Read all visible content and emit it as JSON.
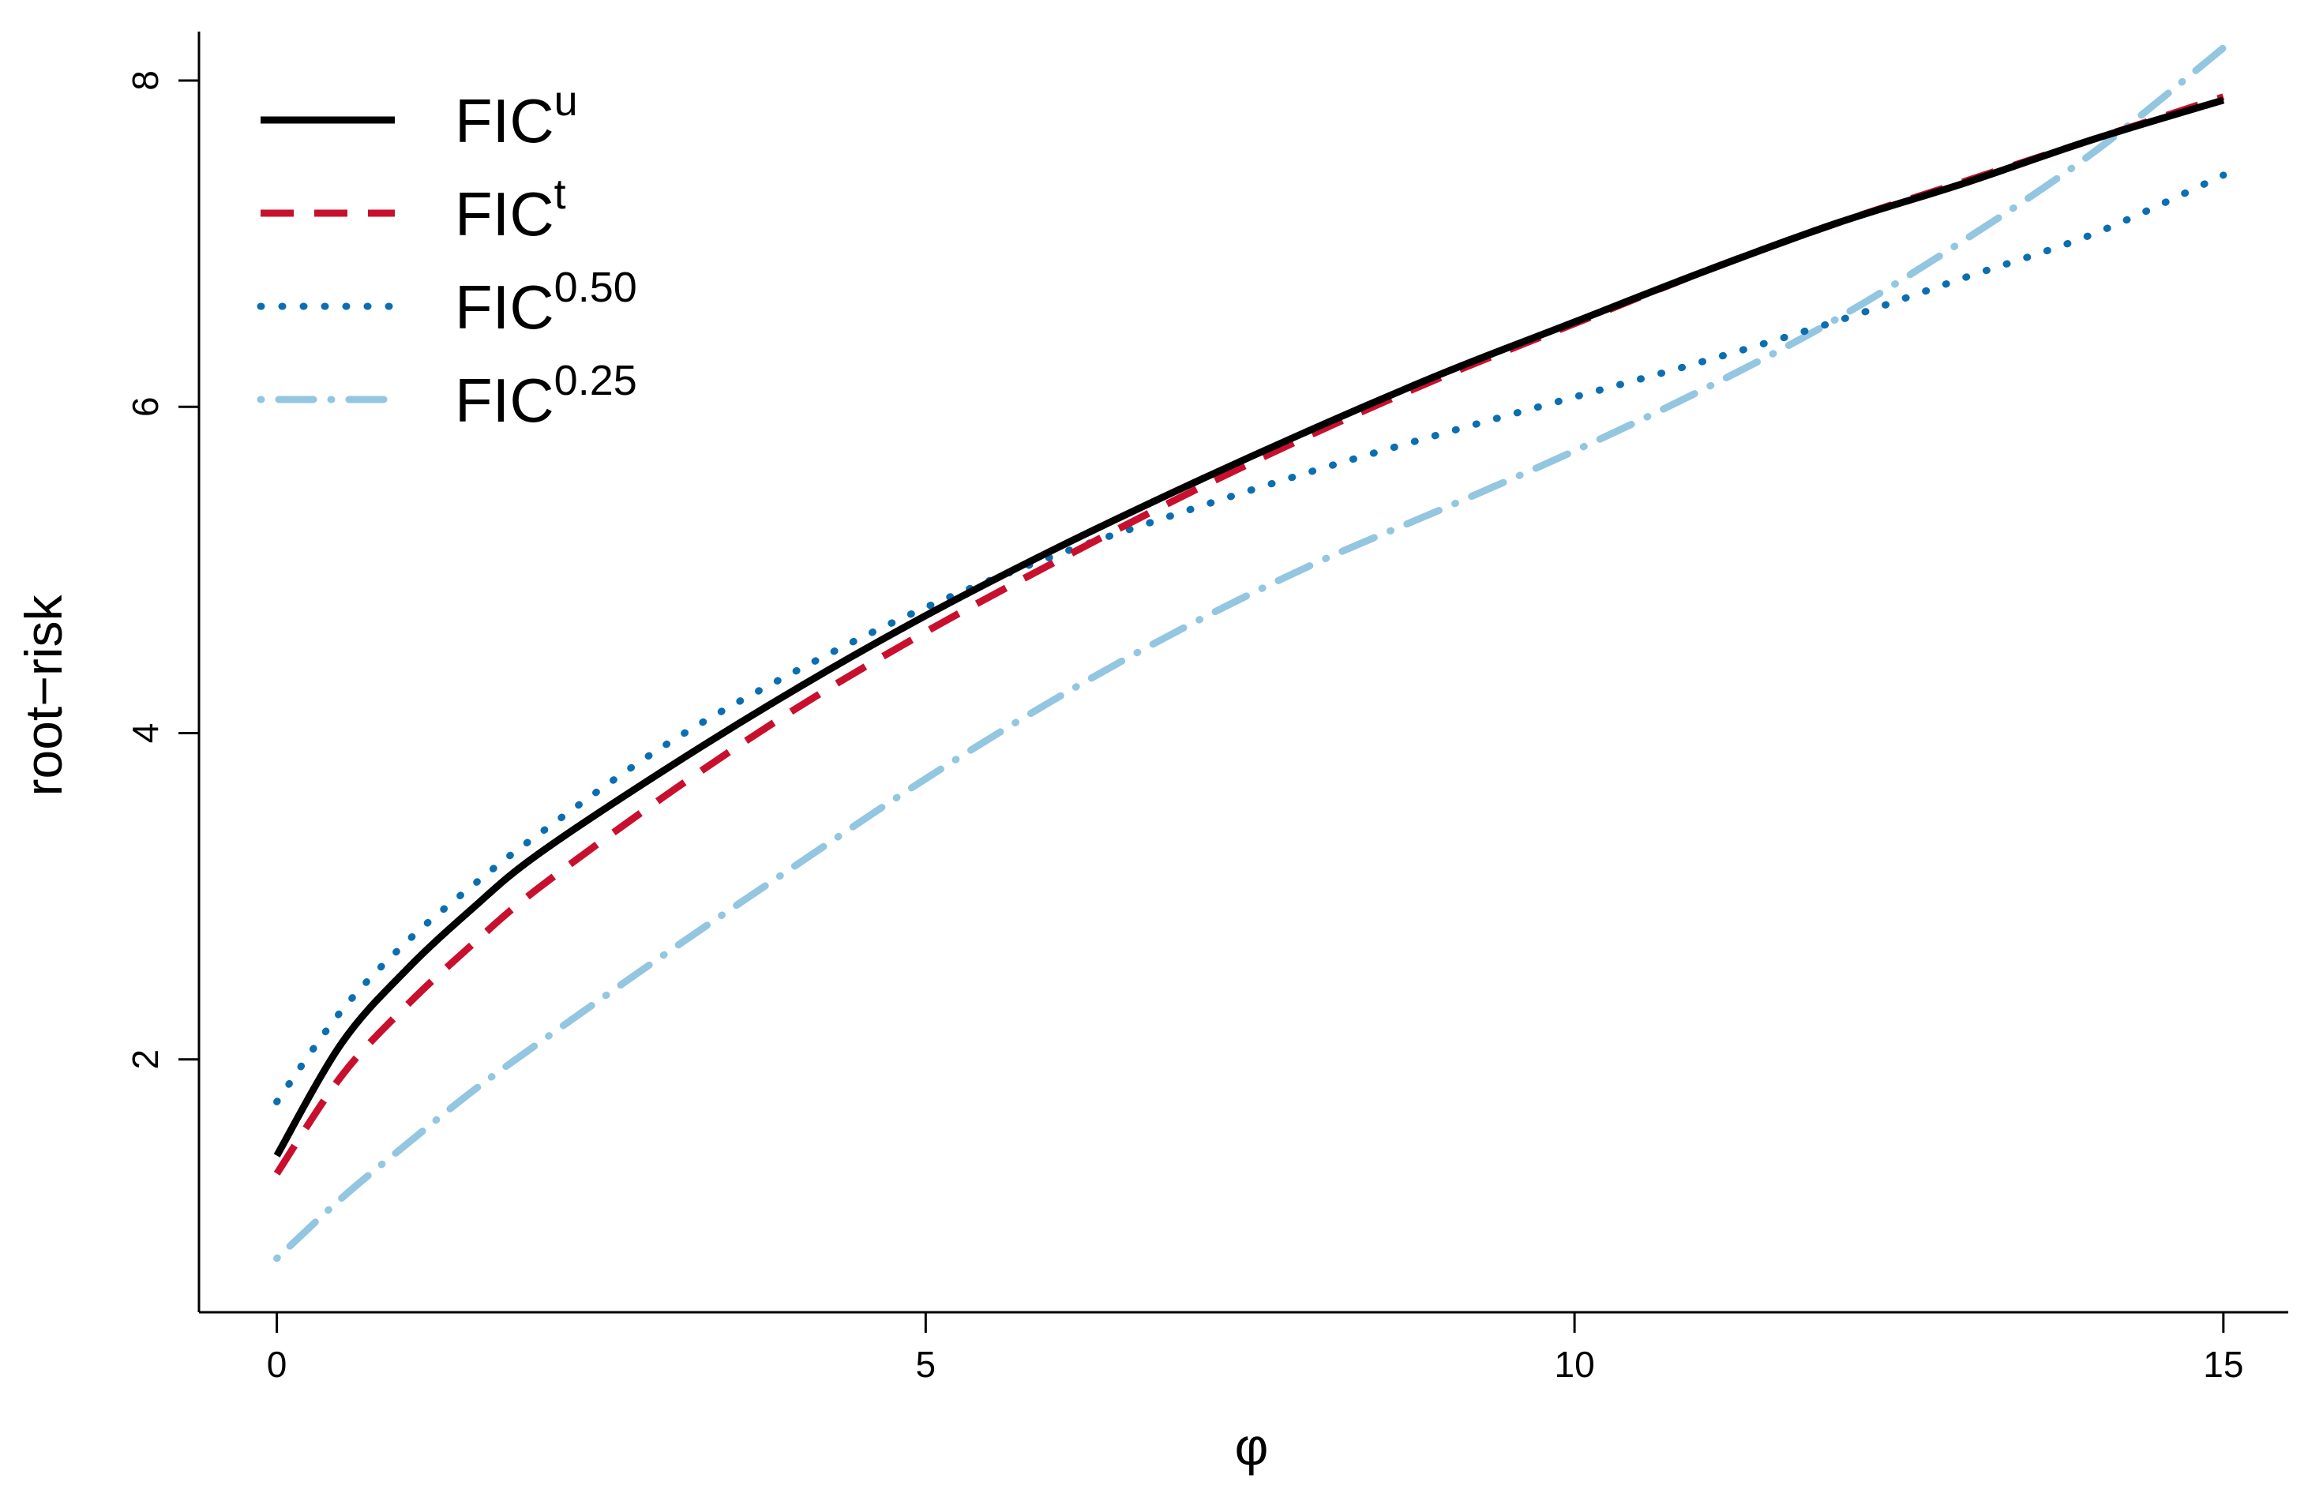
{
  "chart_data": {
    "type": "line",
    "title": "",
    "xlabel": "φ",
    "ylabel": "root−risk",
    "xlim": [
      -0.6,
      15.5
    ],
    "ylim": [
      0.45,
      8.3
    ],
    "xticks": [
      0,
      5,
      10,
      15
    ],
    "xtick_labels": [
      "0",
      "5",
      "10",
      "15"
    ],
    "yticks": [
      2,
      4,
      6,
      8
    ],
    "ytick_labels": [
      "2",
      "4",
      "6",
      "8"
    ],
    "grid": false,
    "legend_position": "top-left",
    "x": [
      0,
      0.5,
      1,
      1.5,
      2,
      3,
      4,
      5,
      6,
      7,
      8,
      9,
      10,
      11,
      12,
      13,
      14,
      15
    ],
    "series": [
      {
        "name": "FIC",
        "sup": "u",
        "color": "#000000",
        "dash": "solid",
        "values": [
          1.41,
          2.1,
          2.55,
          2.92,
          3.25,
          3.78,
          4.27,
          4.72,
          5.13,
          5.51,
          5.87,
          6.21,
          6.52,
          6.83,
          7.12,
          7.37,
          7.64,
          7.88
        ]
      },
      {
        "name": "FIC",
        "sup": "t",
        "color": "#c8102e",
        "dash": "dashed",
        "values": [
          1.3,
          1.9,
          2.33,
          2.7,
          3.04,
          3.62,
          4.15,
          4.62,
          5.05,
          5.46,
          5.84,
          6.19,
          6.51,
          6.83,
          7.12,
          7.38,
          7.64,
          7.9
        ]
      },
      {
        "name": "FIC",
        "sup": "0.50",
        "color": "#0b6eb0",
        "dash": "dotted",
        "values": [
          1.74,
          2.3,
          2.72,
          3.06,
          3.37,
          3.93,
          4.38,
          4.77,
          5.09,
          5.36,
          5.61,
          5.84,
          6.06,
          6.28,
          6.52,
          6.79,
          7.06,
          7.42
        ]
      },
      {
        "name": "FIC",
        "sup": "0.25",
        "color": "#93c6e0",
        "dash": "dotdash",
        "values": [
          0.78,
          1.15,
          1.48,
          1.8,
          2.09,
          2.65,
          3.19,
          3.72,
          4.21,
          4.65,
          5.04,
          5.38,
          5.73,
          6.11,
          6.53,
          7.02,
          7.56,
          8.2
        ]
      }
    ]
  }
}
